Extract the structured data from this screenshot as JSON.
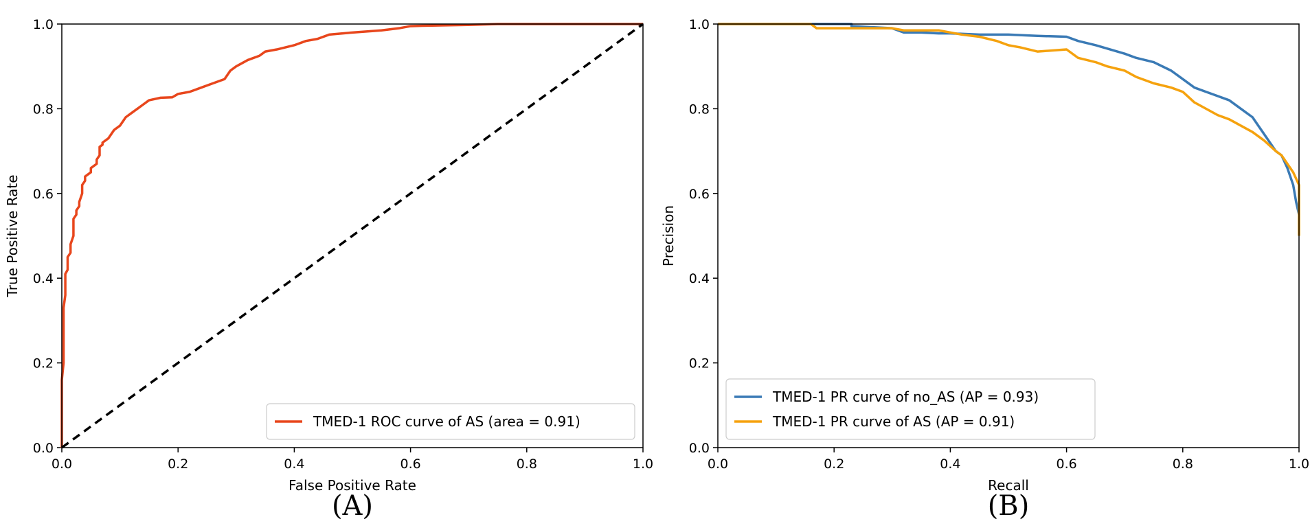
{
  "chart_data": [
    {
      "type": "line",
      "panel_label": "(A)",
      "xlabel": "False Positive Rate",
      "ylabel": "True Positive Rate",
      "xlim": [
        0.0,
        1.0
      ],
      "ylim": [
        0.0,
        1.0
      ],
      "xticks": [
        {
          "value": 0.0,
          "label": "0.0"
        },
        {
          "value": 0.2,
          "label": "0.2"
        },
        {
          "value": 0.4,
          "label": "0.4"
        },
        {
          "value": 0.6,
          "label": "0.6"
        },
        {
          "value": 0.8,
          "label": "0.8"
        },
        {
          "value": 1.0,
          "label": "1.0"
        }
      ],
      "yticks": [
        {
          "value": 0.0,
          "label": "0.0"
        },
        {
          "value": 0.2,
          "label": "0.2"
        },
        {
          "value": 0.4,
          "label": "0.4"
        },
        {
          "value": 0.6,
          "label": "0.6"
        },
        {
          "value": 0.8,
          "label": "0.8"
        },
        {
          "value": 1.0,
          "label": "1.0"
        }
      ],
      "legend_position": "lower-right",
      "series": [
        {
          "name": "TMED-1 ROC curve of AS (area = 0.91)",
          "in_legend": true,
          "color": "#E8461C",
          "dash": "",
          "x": [
            0,
            0,
            0.003,
            0.003,
            0.006,
            0.006,
            0.01,
            0.01,
            0.015,
            0.015,
            0.02,
            0.02,
            0.025,
            0.025,
            0.03,
            0.03,
            0.035,
            0.035,
            0.04,
            0.04,
            0.05,
            0.05,
            0.06,
            0.06,
            0.065,
            0.065,
            0.07,
            0.07,
            0.08,
            0.09,
            0.1,
            0.11,
            0.12,
            0.13,
            0.14,
            0.15,
            0.17,
            0.19,
            0.2,
            0.22,
            0.24,
            0.26,
            0.28,
            0.29,
            0.3,
            0.32,
            0.34,
            0.35,
            0.37,
            0.4,
            0.42,
            0.44,
            0.46,
            0.5,
            0.55,
            0.58,
            0.6,
            0.62,
            0.7,
            0.75,
            0.8,
            0.9,
            1.0
          ],
          "y": [
            0,
            0.16,
            0.2,
            0.33,
            0.36,
            0.41,
            0.42,
            0.45,
            0.46,
            0.48,
            0.5,
            0.54,
            0.55,
            0.56,
            0.57,
            0.58,
            0.6,
            0.62,
            0.63,
            0.64,
            0.65,
            0.66,
            0.67,
            0.68,
            0.69,
            0.71,
            0.715,
            0.72,
            0.73,
            0.75,
            0.76,
            0.78,
            0.79,
            0.8,
            0.81,
            0.82,
            0.826,
            0.827,
            0.835,
            0.84,
            0.85,
            0.86,
            0.87,
            0.89,
            0.9,
            0.915,
            0.925,
            0.935,
            0.94,
            0.95,
            0.96,
            0.965,
            0.975,
            0.98,
            0.985,
            0.99,
            0.995,
            0.996,
            0.998,
            1.0,
            1.0,
            1.0,
            1.0
          ]
        },
        {
          "name": "chance diagonal",
          "in_legend": false,
          "color": "#000000",
          "dash": "12,8",
          "x": [
            0.0,
            1.0
          ],
          "y": [
            0.0,
            1.0
          ]
        }
      ]
    },
    {
      "type": "line",
      "panel_label": "(B)",
      "xlabel": "Recall",
      "ylabel": "Precision",
      "xlim": [
        0.0,
        1.0
      ],
      "ylim": [
        0.0,
        1.0
      ],
      "xticks": [
        {
          "value": 0.0,
          "label": "0.0"
        },
        {
          "value": 0.2,
          "label": "0.2"
        },
        {
          "value": 0.4,
          "label": "0.4"
        },
        {
          "value": 0.6,
          "label": "0.6"
        },
        {
          "value": 0.8,
          "label": "0.8"
        },
        {
          "value": 1.0,
          "label": "1.0"
        }
      ],
      "yticks": [
        {
          "value": 0.0,
          "label": "0.0"
        },
        {
          "value": 0.2,
          "label": "0.2"
        },
        {
          "value": 0.4,
          "label": "0.4"
        },
        {
          "value": 0.6,
          "label": "0.6"
        },
        {
          "value": 0.8,
          "label": "0.8"
        },
        {
          "value": 1.0,
          "label": "1.0"
        }
      ],
      "legend_position": "lower-left",
      "series": [
        {
          "name": "TMED-1 PR curve of no_AS (AP = 0.93)",
          "in_legend": true,
          "color": "#3A7AB5",
          "dash": "",
          "x": [
            0.0,
            0.16,
            0.23,
            0.23,
            0.3,
            0.32,
            0.35,
            0.38,
            0.4,
            0.45,
            0.5,
            0.55,
            0.6,
            0.62,
            0.65,
            0.7,
            0.72,
            0.75,
            0.78,
            0.8,
            0.82,
            0.84,
            0.86,
            0.88,
            0.9,
            0.92,
            0.93,
            0.94,
            0.95,
            0.96,
            0.97,
            0.98,
            0.99,
            0.995,
            1.0
          ],
          "y": [
            1.0,
            1.0,
            1.0,
            0.995,
            0.99,
            0.98,
            0.98,
            0.978,
            0.978,
            0.975,
            0.975,
            0.972,
            0.97,
            0.96,
            0.95,
            0.93,
            0.92,
            0.91,
            0.89,
            0.87,
            0.85,
            0.84,
            0.83,
            0.82,
            0.8,
            0.78,
            0.76,
            0.74,
            0.72,
            0.7,
            0.69,
            0.66,
            0.62,
            0.58,
            0.55
          ]
        },
        {
          "name": "TMED-1 PR curve of AS (AP = 0.91)",
          "in_legend": true,
          "color": "#F5A20E",
          "dash": "",
          "x": [
            0.0,
            0.16,
            0.17,
            0.3,
            0.32,
            0.38,
            0.4,
            0.42,
            0.45,
            0.48,
            0.5,
            0.52,
            0.55,
            0.6,
            0.62,
            0.65,
            0.67,
            0.7,
            0.72,
            0.75,
            0.78,
            0.8,
            0.82,
            0.84,
            0.86,
            0.88,
            0.9,
            0.92,
            0.94,
            0.96,
            0.97,
            0.98,
            0.99,
            1.0,
            1.0
          ],
          "y": [
            1.0,
            1.0,
            0.99,
            0.99,
            0.985,
            0.985,
            0.98,
            0.975,
            0.97,
            0.96,
            0.95,
            0.945,
            0.935,
            0.94,
            0.92,
            0.91,
            0.9,
            0.89,
            0.875,
            0.86,
            0.85,
            0.84,
            0.815,
            0.8,
            0.785,
            0.775,
            0.76,
            0.745,
            0.725,
            0.7,
            0.69,
            0.67,
            0.65,
            0.62,
            0.5
          ]
        }
      ]
    }
  ]
}
